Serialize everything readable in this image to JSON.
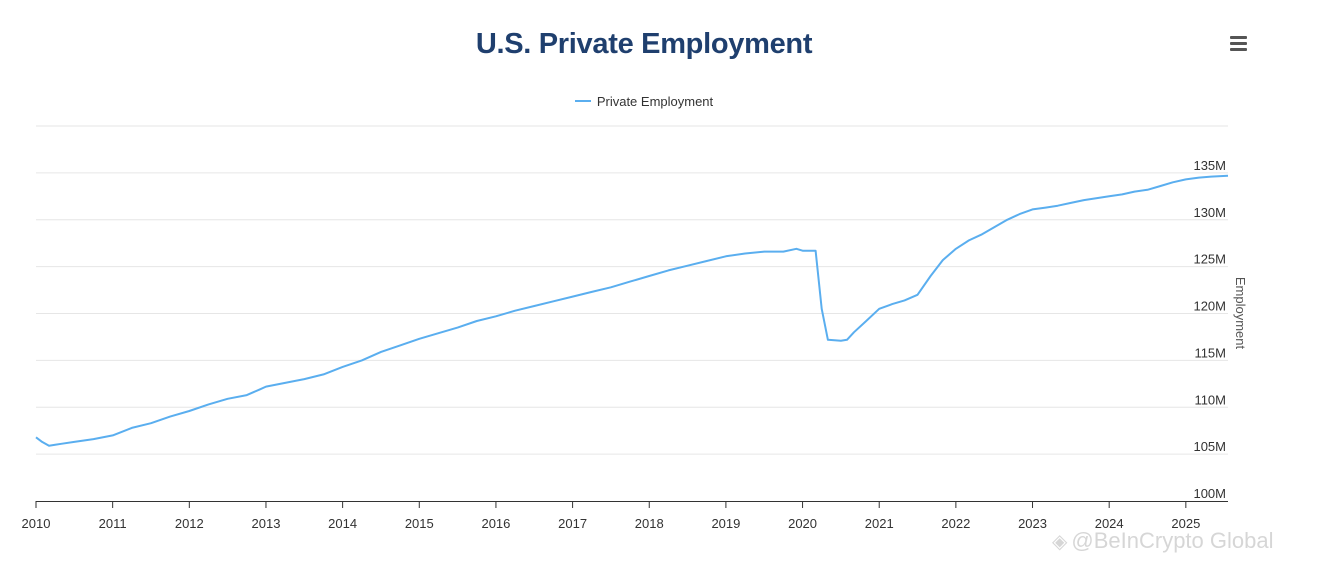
{
  "colors": {
    "title": "#1f3f6e",
    "series": "#5aaeef",
    "grid": "#e6e6e6"
  },
  "menu": {
    "icon": "hamburger-menu-icon"
  },
  "watermark": {
    "text": "@BeInCrypto Global",
    "icon": "diamond-logo-icon"
  },
  "chart_data": {
    "type": "line",
    "title": "U.S. Private Employment",
    "legend_position": "top-center",
    "grid": true,
    "ylabel": "Employment",
    "y_axis_position": "right",
    "ylim": [
      100,
      140
    ],
    "y_ticks": [
      100,
      105,
      110,
      115,
      120,
      125,
      130,
      135
    ],
    "y_tick_labels": [
      "100M",
      "105M",
      "110M",
      "115M",
      "120M",
      "125M",
      "130M",
      "135M"
    ],
    "xlim": [
      2010,
      2025.55
    ],
    "x_ticks": [
      "2010",
      "2011",
      "2012",
      "2013",
      "2014",
      "2015",
      "2016",
      "2017",
      "2018",
      "2019",
      "2020",
      "2021",
      "2022",
      "2023",
      "2024",
      "2025"
    ],
    "series": [
      {
        "name": "Private Employment",
        "unit": "millions",
        "points": [
          [
            2010.0,
            106.8
          ],
          [
            2010.08,
            106.3
          ],
          [
            2010.17,
            105.9
          ],
          [
            2010.25,
            106.0
          ],
          [
            2010.33,
            106.1
          ],
          [
            2010.5,
            106.3
          ],
          [
            2010.75,
            106.6
          ],
          [
            2011.0,
            107.0
          ],
          [
            2011.25,
            107.8
          ],
          [
            2011.5,
            108.3
          ],
          [
            2011.75,
            109.0
          ],
          [
            2012.0,
            109.6
          ],
          [
            2012.25,
            110.3
          ],
          [
            2012.5,
            110.9
          ],
          [
            2012.75,
            111.3
          ],
          [
            2012.92,
            111.9
          ],
          [
            2013.0,
            112.2
          ],
          [
            2013.25,
            112.6
          ],
          [
            2013.5,
            113.0
          ],
          [
            2013.75,
            113.5
          ],
          [
            2014.0,
            114.3
          ],
          [
            2014.25,
            115.0
          ],
          [
            2014.5,
            115.9
          ],
          [
            2014.75,
            116.6
          ],
          [
            2015.0,
            117.3
          ],
          [
            2015.25,
            117.9
          ],
          [
            2015.5,
            118.5
          ],
          [
            2015.75,
            119.2
          ],
          [
            2016.0,
            119.7
          ],
          [
            2016.25,
            120.3
          ],
          [
            2016.5,
            120.8
          ],
          [
            2016.75,
            121.3
          ],
          [
            2017.0,
            121.8
          ],
          [
            2017.25,
            122.3
          ],
          [
            2017.5,
            122.8
          ],
          [
            2017.75,
            123.4
          ],
          [
            2018.0,
            124.0
          ],
          [
            2018.25,
            124.6
          ],
          [
            2018.5,
            125.1
          ],
          [
            2018.75,
            125.6
          ],
          [
            2019.0,
            126.1
          ],
          [
            2019.25,
            126.4
          ],
          [
            2019.5,
            126.6
          ],
          [
            2019.75,
            126.6
          ],
          [
            2019.92,
            126.9
          ],
          [
            2020.0,
            126.7
          ],
          [
            2020.17,
            126.7
          ],
          [
            2020.25,
            120.5
          ],
          [
            2020.33,
            117.2
          ],
          [
            2020.5,
            117.1
          ],
          [
            2020.58,
            117.2
          ],
          [
            2020.67,
            118.0
          ],
          [
            2020.83,
            119.2
          ],
          [
            2021.0,
            120.5
          ],
          [
            2021.17,
            121.0
          ],
          [
            2021.33,
            121.4
          ],
          [
            2021.5,
            122.0
          ],
          [
            2021.67,
            124.0
          ],
          [
            2021.83,
            125.7
          ],
          [
            2022.0,
            126.9
          ],
          [
            2022.17,
            127.8
          ],
          [
            2022.33,
            128.4
          ],
          [
            2022.5,
            129.2
          ],
          [
            2022.67,
            130.0
          ],
          [
            2022.83,
            130.6
          ],
          [
            2023.0,
            131.1
          ],
          [
            2023.17,
            131.3
          ],
          [
            2023.33,
            131.5
          ],
          [
            2023.5,
            131.8
          ],
          [
            2023.67,
            132.1
          ],
          [
            2023.83,
            132.3
          ],
          [
            2024.0,
            132.5
          ],
          [
            2024.17,
            132.7
          ],
          [
            2024.33,
            133.0
          ],
          [
            2024.5,
            133.2
          ],
          [
            2024.67,
            133.6
          ],
          [
            2024.83,
            134.0
          ],
          [
            2025.0,
            134.3
          ],
          [
            2025.17,
            134.5
          ],
          [
            2025.33,
            134.6
          ],
          [
            2025.55,
            134.7
          ]
        ]
      }
    ]
  }
}
